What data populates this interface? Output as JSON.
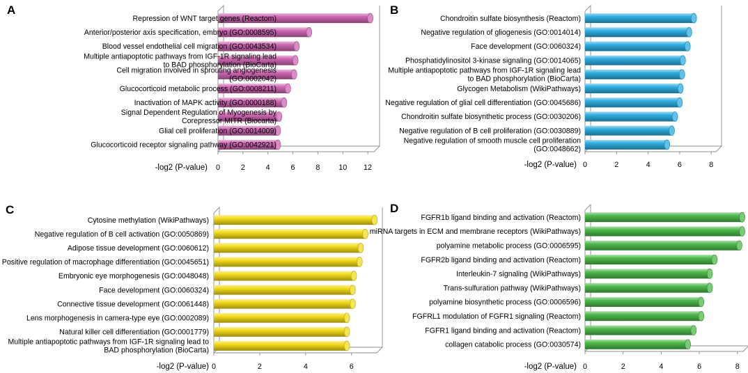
{
  "figure": {
    "panels": [
      {
        "letter": "A",
        "color": "#cc66b1"
      },
      {
        "letter": "B",
        "color": "#2eacdf"
      },
      {
        "letter": "C",
        "color": "#f2db1a"
      },
      {
        "letter": "D",
        "color": "#4db84a"
      }
    ]
  },
  "chart_data": [
    {
      "type": "bar",
      "orientation": "horizontal",
      "panel": "A",
      "xlabel": "-log2 (P-value)",
      "xlim": [
        0,
        12.5
      ],
      "xticks": [
        0,
        2,
        4,
        6,
        8,
        10,
        12
      ],
      "tick_labels": [
        "0",
        "2",
        "4",
        "6",
        "8",
        "10",
        "12"
      ],
      "categories": [
        [
          "Repression of WNT target genes (Reactom)"
        ],
        [
          "Anterior/posterior axis specification, embryo (GO:0008595)"
        ],
        [
          "Blood vessel endothelial cell migration (GO:0043534)"
        ],
        [
          "Multiple antiapoptotic pathways from IGF-1R signaling lead",
          "to BAD phosphorylation (BioCarta)"
        ],
        [
          "Cell migration involved in sprouting angiogenesis",
          "(GO:0002042)"
        ],
        [
          "Glucocorticoid metabolic process (GO:0008211)"
        ],
        [
          "Inactivation of MAPK activity (GO:0000188)"
        ],
        [
          "Signal Dependent Regulation of Myogenesis by",
          "Corepressor MITR (Biocarta)"
        ],
        [
          "Glial cell proliferation (GO:0014009)"
        ],
        [
          "Glucocorticoid receptor signaling pathway (GO:0042921)"
        ]
      ],
      "values": [
        12.2,
        7.3,
        6.3,
        6.2,
        6.1,
        5.6,
        5.3,
        4.9,
        4.8,
        4.8
      ]
    },
    {
      "type": "bar",
      "orientation": "horizontal",
      "panel": "B",
      "xlabel": "-log2 (P-value)",
      "xlim": [
        0,
        8.3
      ],
      "xticks": [
        0,
        2,
        4,
        6,
        8
      ],
      "tick_labels": [
        "0",
        "2",
        "4",
        "6",
        "8"
      ],
      "categories": [
        [
          "Chondroitin sulfate biosynthesis (Reactom)"
        ],
        [
          "Negative regulation of gliogenesis (GO:0014014)"
        ],
        [
          "Face development (GO:0060324)"
        ],
        [
          "Phosphatidylinositol 3-kinase signaling (GO:0014065)"
        ],
        [
          "Multiple antiapoptotic pathways from IGF-1R signaling lead",
          "to BAD phosphorylation (BioCarta)"
        ],
        [
          "Glycogen Metabolism (WikiPathways)"
        ],
        [
          "Negative regulation of glial cell differentiation (GO:0045686)"
        ],
        [
          "Chondroitin sulfate biosynthetic process (GO:0030206)"
        ],
        [
          "Negative regulation of B cell proliferation (GO:0030889)"
        ],
        [
          "Negative regulation of smooth muscle cell proliferation",
          "(GO:0048662)"
        ]
      ],
      "values": [
        6.9,
        6.6,
        6.5,
        6.2,
        6.15,
        6.05,
        6.0,
        5.7,
        5.5,
        5.2
      ]
    },
    {
      "type": "bar",
      "orientation": "horizontal",
      "panel": "C",
      "xlabel": "-log2 (P-value)",
      "xlim": [
        0,
        7.1
      ],
      "xticks": [
        0,
        2,
        4,
        6
      ],
      "tick_labels": [
        "0",
        "2",
        "4",
        "6"
      ],
      "categories": [
        [
          "Cytosine methylation (WikiPathways)"
        ],
        [
          "Negative regulation of B cell activation (GO:0050869)"
        ],
        [
          "Adipose tissue development (GO:0060612)"
        ],
        [
          "Positive regulation of macrophage differentiation (GO:0045651)"
        ],
        [
          "Embryonic eye morphogenesis (GO:0048048)"
        ],
        [
          "Face development (GO:0060324)"
        ],
        [
          "Connective tissue development (GO:0061448)"
        ],
        [
          "Lens morphogenesis in camera-type eye (GO:0002089)"
        ],
        [
          "Natural killer cell differentiation (GO:0001779)"
        ],
        [
          "Multiple antiapoptotic pathways from IGF-1R signaling lead to",
          "BAD phosphorylation (BioCarta)"
        ]
      ],
      "values": [
        7.0,
        6.6,
        6.4,
        6.35,
        6.1,
        6.05,
        6.05,
        5.8,
        5.8,
        5.8
      ]
    },
    {
      "type": "bar",
      "orientation": "horizontal",
      "panel": "D",
      "xlabel": "-log2 (P-value)",
      "xlim": [
        0,
        8.3
      ],
      "xticks": [
        0,
        2,
        4,
        6,
        8
      ],
      "tick_labels": [
        "0",
        "2",
        "4",
        "6",
        "8"
      ],
      "categories": [
        [
          "FGFR1b ligand binding and activation (Reactom)"
        ],
        [
          "miRNA targets in ECM and membrane receptors (WikiPathways)"
        ],
        [
          "polyamine metabolic process (GO:0006595)"
        ],
        [
          "FGFR2b ligand binding and activation (Reactom)"
        ],
        [
          "Interleukin-7 signaling (WikiPathways)"
        ],
        [
          "Trans-sulfuration pathway (WikiPathways)"
        ],
        [
          "polyamine biosynthetic process (GO:0006596)"
        ],
        [
          "FGFRL1 modulation of FGFR1 signaling (Reactom)"
        ],
        [
          "FGFR1 ligand binding and activation (Reactom)"
        ],
        [
          "collagen catabolic process (GO:0030574)"
        ]
      ],
      "values": [
        8.25,
        8.25,
        8.1,
        6.8,
        6.55,
        6.55,
        6.1,
        6.1,
        5.7,
        5.4
      ]
    }
  ]
}
